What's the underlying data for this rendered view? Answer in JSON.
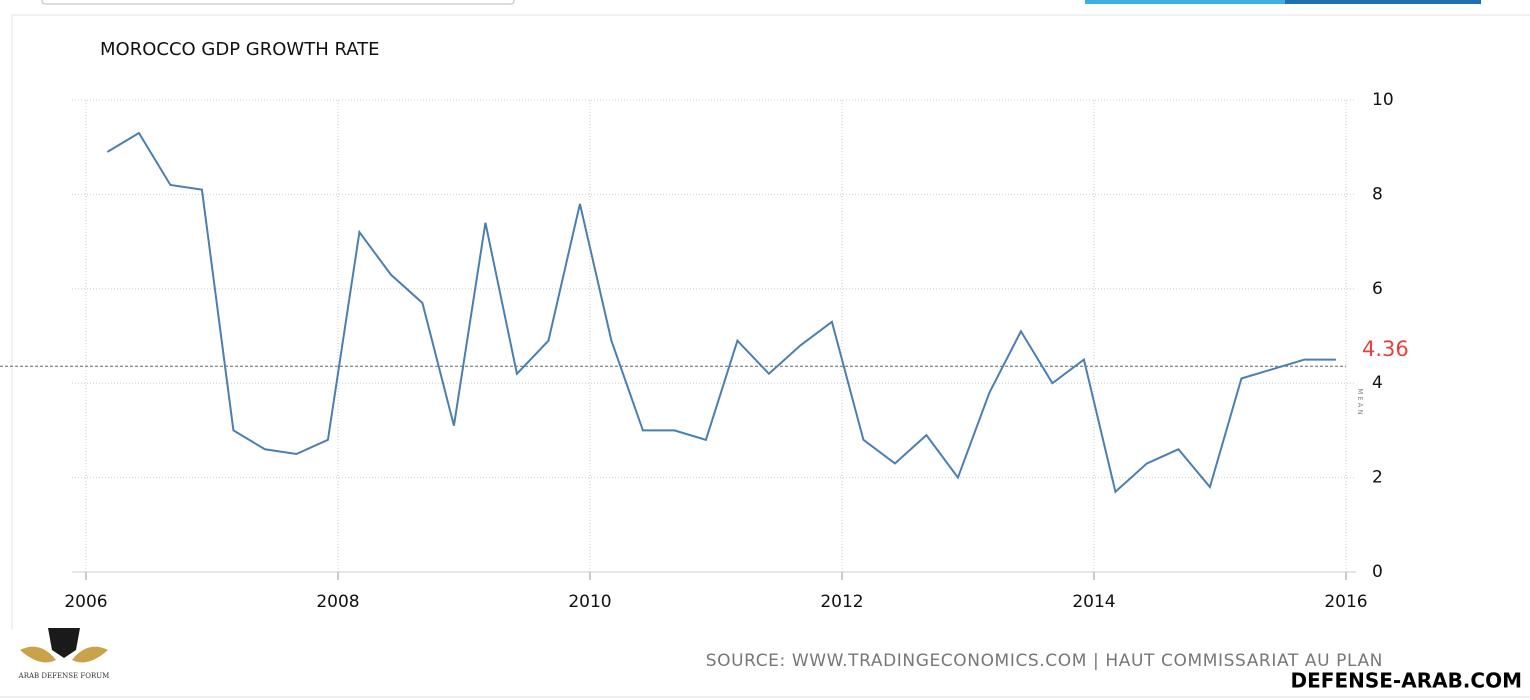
{
  "chart_data": {
    "type": "line",
    "title": "MOROCCO GDP GROWTH RATE",
    "x": [
      2006.17,
      2006.42,
      2006.67,
      2006.92,
      2007.17,
      2007.42,
      2007.67,
      2007.92,
      2008.17,
      2008.42,
      2008.67,
      2008.92,
      2009.17,
      2009.42,
      2009.67,
      2009.92,
      2010.17,
      2010.42,
      2010.67,
      2010.92,
      2011.17,
      2011.42,
      2011.67,
      2011.92,
      2012.17,
      2012.42,
      2012.67,
      2012.92,
      2013.17,
      2013.42,
      2013.67,
      2013.92,
      2014.17,
      2014.42,
      2014.67,
      2014.92,
      2015.17,
      2015.42,
      2015.67,
      2015.92
    ],
    "series": [
      {
        "color": "#4a7fb0",
        "values": [
          8.9,
          9.3,
          8.2,
          8.1,
          3.0,
          2.6,
          2.5,
          2.8,
          7.2,
          6.3,
          5.7,
          3.1,
          7.4,
          4.2,
          4.9,
          7.8,
          4.9,
          3.0,
          3.0,
          2.8,
          4.9,
          4.2,
          4.8,
          5.3,
          2.8,
          2.3,
          2.9,
          2.0,
          3.8,
          5.1,
          4.0,
          4.5,
          1.7,
          2.3,
          2.6,
          1.8,
          4.1,
          4.3,
          4.5,
          4.5
        ]
      }
    ],
    "xlim": [
      2006,
      2016
    ],
    "xticks": [
      2006,
      2008,
      2010,
      2012,
      2014,
      2016
    ],
    "ylim": [
      0,
      10
    ],
    "yticks": [
      0,
      2,
      4,
      6,
      8,
      10
    ],
    "grid": true,
    "mean": 4.36,
    "mean_label": "MEAN",
    "mean_color": "#e8413c",
    "source": "SOURCE: WWW.TRADINGECONOMICS.COM | HAUT COMMISSARIAT AU PLAN"
  },
  "watermark": {
    "site": "DEFENSE-ARAB.COM",
    "logo": "ARAB DEFENSE FORUM"
  }
}
